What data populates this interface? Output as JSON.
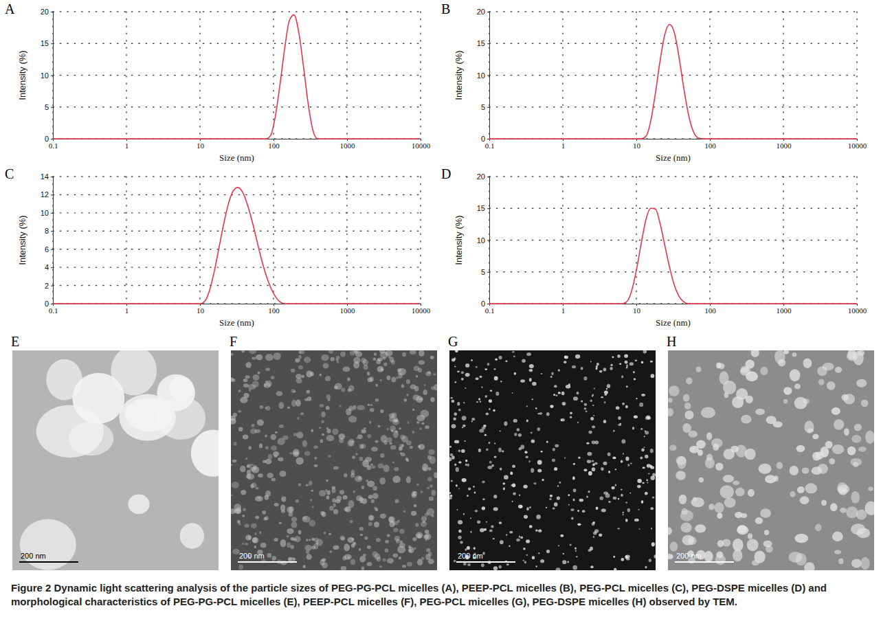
{
  "chart_data": [
    {
      "type": "line",
      "panel": "A",
      "x_label": "Size (nm)",
      "y_label": "Intensity (%)",
      "log": "x",
      "grid": true,
      "color": "#e8334a",
      "x": [
        0.1,
        68.06,
        78.82,
        91.28,
        105.7,
        122.4,
        141.8,
        164.2,
        190.1,
        220.2,
        255.0,
        295.3,
        342.0,
        396.1,
        10000
      ],
      "values": [
        0,
        0,
        0,
        0.5,
        3.5,
        8.5,
        14.2,
        18.6,
        19.5,
        16.8,
        11.5,
        5.6,
        1.4,
        0,
        0
      ],
      "xlim": [
        0.1,
        10000
      ],
      "xticks": [
        0.1,
        1,
        10,
        100,
        1000,
        10000
      ],
      "ylim": [
        0,
        20
      ],
      "yticks": [
        0,
        5,
        10,
        15,
        20
      ]
    },
    {
      "type": "line",
      "panel": "B",
      "x_label": "Size (nm)",
      "y_label": "Intensity (%)",
      "log": "x",
      "grid": true,
      "color": "#e8334a",
      "x": [
        0.1,
        11.7,
        13.54,
        15.69,
        18.17,
        21.04,
        24.36,
        28.21,
        32.67,
        37.84,
        43.82,
        50.75,
        58.77,
        68.06,
        78.82,
        10000
      ],
      "values": [
        0,
        0,
        0.4,
        2.8,
        7.2,
        12.3,
        16.4,
        18.0,
        16.8,
        13.0,
        8.2,
        4.0,
        1.3,
        0.2,
        0,
        0
      ],
      "xlim": [
        0.1,
        10000
      ],
      "xticks": [
        0.1,
        1,
        10,
        100,
        1000,
        10000
      ],
      "ylim": [
        0,
        20
      ],
      "yticks": [
        0,
        5,
        10,
        15,
        20
      ]
    },
    {
      "type": "line",
      "panel": "C",
      "x_label": "Size (nm)",
      "y_label": "Intensity (%)",
      "log": "x",
      "grid": true,
      "color": "#e8334a",
      "x": [
        0.1,
        10.1,
        11.7,
        13.54,
        15.69,
        18.17,
        21.04,
        24.36,
        28.21,
        32.67,
        37.84,
        43.82,
        50.75,
        58.77,
        68.06,
        78.82,
        91.28,
        105.7,
        122.4,
        141.8,
        10000
      ],
      "values": [
        0,
        0,
        0.3,
        1.5,
        3.6,
        6.2,
        8.8,
        11.0,
        12.4,
        12.8,
        12.3,
        11.0,
        9.2,
        7.1,
        5.0,
        3.2,
        1.8,
        0.8,
        0.2,
        0,
        0
      ],
      "xlim": [
        0.1,
        10000
      ],
      "xticks": [
        0.1,
        1,
        10,
        100,
        1000,
        10000
      ],
      "ylim": [
        0,
        14
      ],
      "yticks": [
        0,
        2,
        4,
        6,
        8,
        10,
        12,
        14
      ]
    },
    {
      "type": "line",
      "panel": "D",
      "x_label": "Size (nm)",
      "y_label": "Intensity (%)",
      "log": "x",
      "grid": true,
      "color": "#e8334a",
      "x": [
        0.1,
        6.5,
        7.53,
        8.72,
        10.1,
        11.7,
        13.54,
        15.69,
        18.17,
        21.04,
        24.36,
        28.21,
        32.67,
        37.84,
        43.82,
        50.75,
        10000
      ],
      "values": [
        0,
        0,
        0.4,
        2.2,
        5.5,
        9.6,
        13.3,
        15.0,
        14.9,
        12.6,
        9.2,
        5.8,
        3.0,
        1.2,
        0.3,
        0,
        0
      ],
      "xlim": [
        0.1,
        10000
      ],
      "xticks": [
        0.1,
        1,
        10,
        100,
        1000,
        10000
      ],
      "ylim": [
        0,
        20
      ],
      "yticks": [
        0,
        5,
        10,
        15,
        20
      ]
    }
  ],
  "tem_images": [
    {
      "panel": "E",
      "scale_bar": "200 nm"
    },
    {
      "panel": "F",
      "scale_bar": "200 nm"
    },
    {
      "panel": "G",
      "scale_bar": "200 nm"
    },
    {
      "panel": "H",
      "scale_bar": "200 nm"
    }
  ],
  "caption": {
    "label": "Figure 2",
    "text": "Dynamic light scattering analysis of the particle sizes of PEG-PG-PCL micelles (A), PEEP-PCL micelles (B), PEG-PCL micelles (C), PEG-DSPE micelles (D) and morphological characteristics of PEG-PG-PCL micelles (E), PEEP-PCL micelles (F), PEG-PCL micelles (G), PEG-DSPE micelles (H) observed by TEM."
  }
}
